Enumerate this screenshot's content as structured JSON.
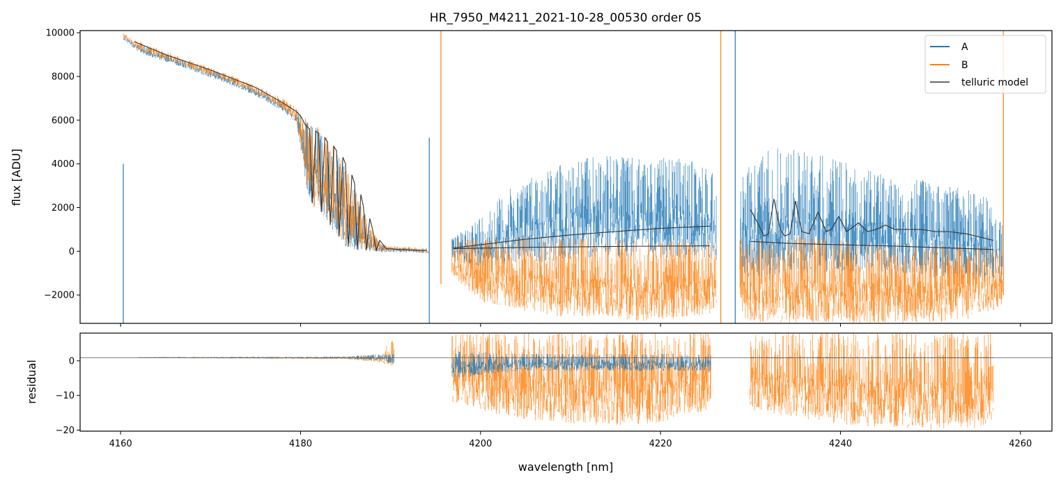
{
  "chart_data": {
    "type": "line",
    "title": "HR_7950_M4211_2021-10-28_00530  order 05",
    "xlabel": "wavelength [nm]",
    "colors": {
      "A": "#1f77b4",
      "B": "#ff7f0e",
      "model": "#333333"
    },
    "legend": {
      "placement": "top-right",
      "entries": [
        "A",
        "B",
        "telluric model"
      ]
    },
    "xlim": [
      4155.5,
      4263.5
    ],
    "xticks": [
      4160,
      4180,
      4200,
      4220,
      4240,
      4260
    ],
    "xtick_labels": [
      "4160",
      "4180",
      "4200",
      "4220",
      "4240",
      "4260"
    ],
    "top_panel": {
      "ylabel": "flux [ADU]",
      "ylim": [
        -3300,
        10100
      ],
      "yticks": [
        -2000,
        0,
        2000,
        4000,
        6000,
        8000,
        10000
      ],
      "ytick_labels": [
        "−2000",
        "0",
        "2000",
        "4000",
        "6000",
        "8000",
        "10000"
      ],
      "series": [
        {
          "name": "A",
          "envelope": [
            [
              4160.3,
              9900,
              9700
            ],
            [
              4162,
              9500,
              9100
            ],
            [
              4164,
              9200,
              8800
            ],
            [
              4166,
              8900,
              8550
            ],
            [
              4168,
              8600,
              8250
            ],
            [
              4170,
              8300,
              7950
            ],
            [
              4172,
              8000,
              7650
            ],
            [
              4174,
              7650,
              7300
            ],
            [
              4176,
              7300,
              6900
            ],
            [
              4178,
              6900,
              6400
            ],
            [
              4179.5,
              6500,
              5900
            ],
            [
              4181,
              5800,
              2000
            ],
            [
              4182,
              5600,
              1800
            ],
            [
              4183,
              5100,
              1300
            ],
            [
              4184,
              4500,
              600
            ],
            [
              4185,
              3800,
              200
            ],
            [
              4186,
              2800,
              50
            ],
            [
              4187,
              1800,
              0
            ],
            [
              4188,
              800,
              -50
            ],
            [
              4189,
              300,
              -50
            ],
            [
              4190,
              200,
              -50
            ],
            [
              4192,
              150,
              -50
            ],
            [
              4194,
              100,
              -100
            ],
            [
              4197,
              600,
              -400
            ],
            [
              4200,
              1600,
              -700
            ],
            [
              4203,
              2800,
              -600
            ],
            [
              4206,
              3500,
              -500
            ],
            [
              4209,
              4000,
              -500
            ],
            [
              4212,
              4300,
              -400
            ],
            [
              4215,
              4400,
              -300
            ],
            [
              4218,
              4200,
              -300
            ],
            [
              4221,
              4300,
              -300
            ],
            [
              4224,
              4100,
              -300
            ],
            [
              4226,
              3700,
              -400
            ],
            [
              4229,
              3500,
              -1200
            ],
            [
              4232,
              4800,
              -1200
            ],
            [
              4235,
              4700,
              -1100
            ],
            [
              4238,
              4400,
              -1000
            ],
            [
              4241,
              4000,
              -1000
            ],
            [
              4244,
              3600,
              -1000
            ],
            [
              4247,
              3400,
              -1100
            ],
            [
              4250,
              3200,
              -1200
            ],
            [
              4253,
              3000,
              -1300
            ],
            [
              4256,
              2600,
              -1300
            ],
            [
              4258,
              1300,
              -1500
            ]
          ]
        },
        {
          "name": "B",
          "envelope": [
            [
              4160.3,
              10000,
              9800
            ],
            [
              4162,
              9600,
              9200
            ],
            [
              4164,
              9300,
              8900
            ],
            [
              4166,
              9000,
              8650
            ],
            [
              4168,
              8700,
              8350
            ],
            [
              4170,
              8400,
              8050
            ],
            [
              4172,
              8100,
              7750
            ],
            [
              4174,
              7750,
              7400
            ],
            [
              4176,
              7400,
              7000
            ],
            [
              4178,
              7000,
              6500
            ],
            [
              4179.5,
              6600,
              6000
            ],
            [
              4181,
              5900,
              2100
            ],
            [
              4182,
              5700,
              1900
            ],
            [
              4183,
              5200,
              1400
            ],
            [
              4184,
              4600,
              700
            ],
            [
              4185,
              3900,
              300
            ],
            [
              4186,
              2900,
              100
            ],
            [
              4187,
              1900,
              50
            ],
            [
              4188,
              900,
              0
            ],
            [
              4189,
              350,
              0
            ],
            [
              4190,
              250,
              0
            ],
            [
              4192,
              200,
              0
            ],
            [
              4194,
              150,
              -50
            ],
            [
              4197,
              500,
              -1300
            ],
            [
              4200,
              600,
              -2300
            ],
            [
              4203,
              700,
              -2600
            ],
            [
              4206,
              600,
              -2800
            ],
            [
              4209,
              600,
              -3000
            ],
            [
              4212,
              600,
              -3000
            ],
            [
              4215,
              500,
              -3100
            ],
            [
              4218,
              500,
              -3200
            ],
            [
              4221,
              500,
              -3100
            ],
            [
              4224,
              400,
              -3000
            ],
            [
              4226,
              400,
              -2800
            ],
            [
              4229,
              600,
              -3200
            ],
            [
              4232,
              700,
              -3300
            ],
            [
              4235,
              700,
              -3300
            ],
            [
              4238,
              600,
              -3300
            ],
            [
              4241,
              500,
              -3300
            ],
            [
              4244,
              400,
              -3300
            ],
            [
              4247,
              400,
              -3300
            ],
            [
              4250,
              300,
              -3300
            ],
            [
              4253,
              300,
              -3200
            ],
            [
              4256,
              200,
              -3000
            ],
            [
              4258,
              100,
              -2500
            ]
          ]
        }
      ],
      "telluric_model": {
        "segment_1": [
          [
            4161.5,
            9600
          ],
          [
            4165,
            9000
          ],
          [
            4170,
            8300
          ],
          [
            4175,
            7500
          ],
          [
            4178,
            6800
          ],
          [
            4179.5,
            6400
          ],
          [
            4180,
            6200
          ],
          [
            4180.5,
            5800
          ],
          [
            4181,
            5600
          ],
          [
            4181.3,
            2200
          ],
          [
            4181.7,
            5500
          ],
          [
            4182,
            5400
          ],
          [
            4182.3,
            1800
          ],
          [
            4182.7,
            5200
          ],
          [
            4183,
            5000
          ],
          [
            4183.3,
            1200
          ],
          [
            4183.7,
            4800
          ],
          [
            4184,
            4600
          ],
          [
            4184.3,
            700
          ],
          [
            4184.7,
            4300
          ],
          [
            4185,
            4000
          ],
          [
            4185.3,
            200
          ],
          [
            4185.7,
            3500
          ],
          [
            4186,
            3100
          ],
          [
            4186.3,
            80
          ],
          [
            4186.7,
            2600
          ],
          [
            4187,
            2000
          ],
          [
            4187.3,
            40
          ],
          [
            4187.7,
            1500
          ],
          [
            4188,
            1000
          ],
          [
            4188.4,
            50
          ],
          [
            4188.8,
            500
          ],
          [
            4189.5,
            120
          ],
          [
            4192,
            60
          ],
          [
            4194,
            40
          ]
        ],
        "segment_2_upper": [
          [
            4197,
            150
          ],
          [
            4200,
            300
          ],
          [
            4205,
            550
          ],
          [
            4210,
            750
          ],
          [
            4215,
            900
          ],
          [
            4220,
            1050
          ],
          [
            4225.5,
            1150
          ]
        ],
        "segment_2_lower": [
          [
            4197,
            120
          ],
          [
            4205,
            180
          ],
          [
            4215,
            220
          ],
          [
            4225.5,
            250
          ]
        ],
        "segment_3_upper": [
          [
            4230,
            1900
          ],
          [
            4230.8,
            1300
          ],
          [
            4231.5,
            700
          ],
          [
            4232,
            800
          ],
          [
            4232.6,
            2400
          ],
          [
            4233.3,
            1000
          ],
          [
            4233.8,
            700
          ],
          [
            4234.4,
            800
          ],
          [
            4235,
            2300
          ],
          [
            4235.7,
            900
          ],
          [
            4236.5,
            800
          ],
          [
            4237.5,
            1800
          ],
          [
            4238.4,
            900
          ],
          [
            4239,
            1000
          ],
          [
            4239.8,
            1600
          ],
          [
            4240.7,
            900
          ],
          [
            4242,
            1300
          ],
          [
            4243,
            900
          ],
          [
            4244,
            1000
          ],
          [
            4245,
            1200
          ],
          [
            4246,
            1000
          ],
          [
            4247.5,
            1000
          ],
          [
            4249,
            1000
          ],
          [
            4250.5,
            900
          ],
          [
            4252,
            900
          ],
          [
            4254,
            800
          ],
          [
            4256,
            600
          ],
          [
            4257,
            500
          ]
        ],
        "segment_3_lower": [
          [
            4230,
            450
          ],
          [
            4235,
            350
          ],
          [
            4240,
            300
          ],
          [
            4245,
            250
          ],
          [
            4250,
            180
          ],
          [
            4257,
            80
          ]
        ]
      }
    },
    "bottom_panel": {
      "ylabel": "residual",
      "ylim": [
        -20.3,
        8
      ],
      "yticks": [
        -20,
        -10,
        0
      ],
      "ytick_labels": [
        "−20",
        "−10",
        "0"
      ],
      "reference_line": 0.9,
      "series": [
        {
          "name": "A",
          "envelope": [
            [
              4162,
              1.1,
              0.8
            ],
            [
              4185,
              1.2,
              0.6
            ],
            [
              4189,
              2,
              0
            ],
            [
              4197,
              3,
              -5
            ],
            [
              4205,
              2,
              -3
            ],
            [
              4215,
              2,
              -3
            ],
            [
              4225.5,
              2,
              -3
            ],
            [
              4230,
              1.1,
              0.7
            ],
            [
              4257,
              1.1,
              0.7
            ]
          ]
        },
        {
          "name": "B",
          "envelope": [
            [
              4162,
              1.1,
              0.8
            ],
            [
              4185,
              1.3,
              0.5
            ],
            [
              4189,
              2.2,
              -0.5
            ],
            [
              4190.2,
              7,
              -2
            ],
            [
              4197,
              8,
              -12
            ],
            [
              4201,
              8,
              -15
            ],
            [
              4205,
              8,
              -17
            ],
            [
              4210,
              8,
              -18
            ],
            [
              4215,
              8,
              -19
            ],
            [
              4220,
              8,
              -18
            ],
            [
              4225.5,
              8,
              -14
            ],
            [
              4230,
              8,
              -14
            ],
            [
              4236,
              8,
              -17
            ],
            [
              4242,
              8,
              -19
            ],
            [
              4248,
              8,
              -20
            ],
            [
              4254,
              8,
              -20
            ],
            [
              4257,
              8,
              -18
            ]
          ]
        }
      ]
    }
  }
}
